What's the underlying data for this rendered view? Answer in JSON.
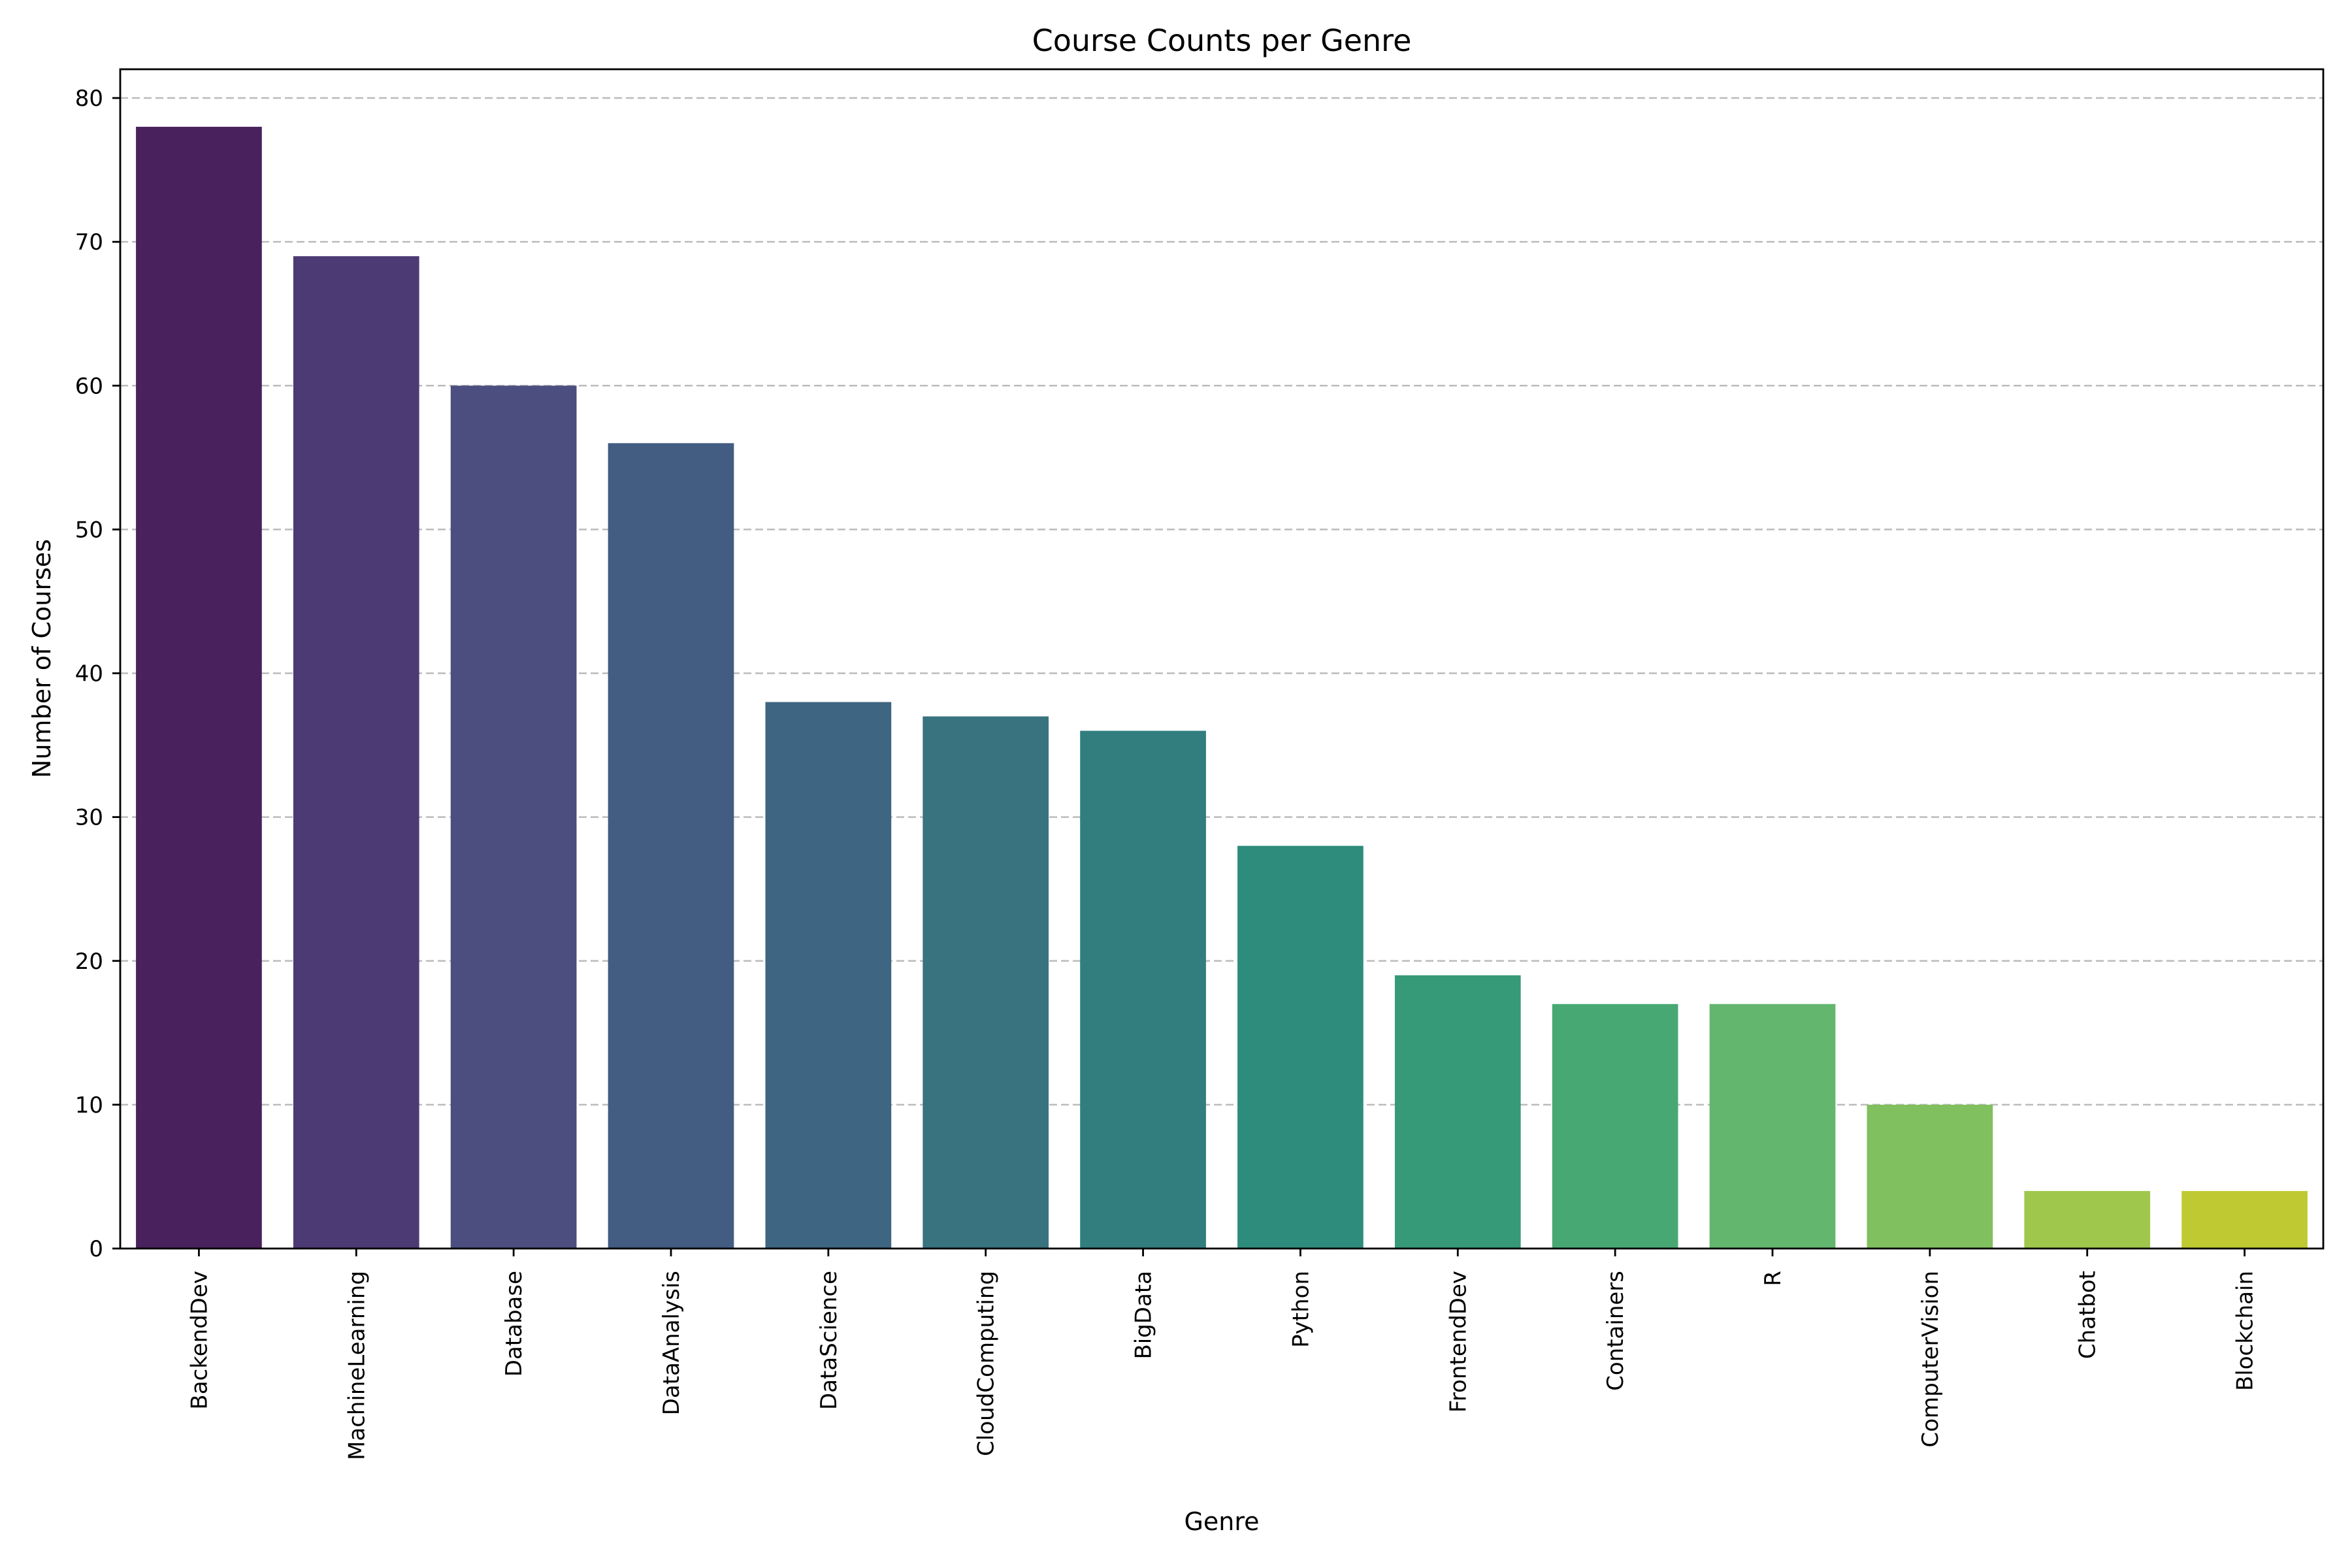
{
  "chart_data": {
    "type": "bar",
    "title": "Course Counts per Genre",
    "xlabel": "Genre",
    "ylabel": "Number of Courses",
    "ylim": [
      0,
      82
    ],
    "yticks": [
      0,
      10,
      20,
      30,
      40,
      50,
      60,
      70,
      80
    ],
    "grid": "horizontal-dashed",
    "categories": [
      "BackendDev",
      "MachineLearning",
      "Database",
      "DataAnalysis",
      "DataScience",
      "CloudComputing",
      "BigData",
      "Python",
      "FrontendDev",
      "Containers",
      "R",
      "ComputerVision",
      "Chatbot",
      "Blockchain"
    ],
    "values": [
      78,
      69,
      60,
      56,
      38,
      37,
      36,
      28,
      19,
      17,
      17,
      10,
      4,
      4
    ],
    "colors": [
      "#48215d",
      "#4b3a73",
      "#4b4e7e",
      "#435c82",
      "#3e6581",
      "#38737f",
      "#327e7f",
      "#2e8c7c",
      "#369a79",
      "#48a874",
      "#62b66e",
      "#80c05f",
      "#9fc74b",
      "#bfca32"
    ]
  }
}
